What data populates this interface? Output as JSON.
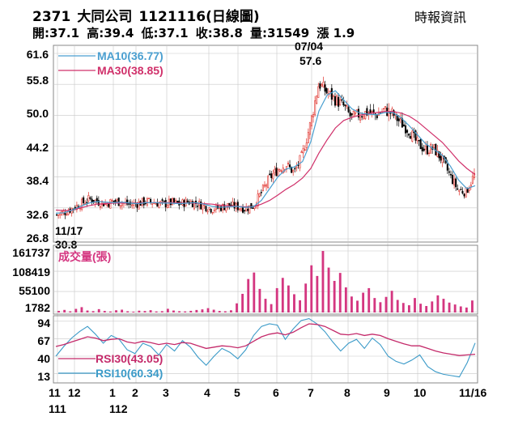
{
  "header": {
    "code": "2371",
    "name": "大同公司",
    "date": "1121116",
    "chart_kind": "(日線圖)",
    "source": "時報資訊",
    "open": "開:37.1",
    "high": "高:39.4",
    "low": "低:37.1",
    "close": "收:38.8",
    "volume": "量:31549",
    "change": "漲 1.9"
  },
  "colors": {
    "up": "#e0302a",
    "down": "#000000",
    "ma10": "#4a9fd0",
    "ma30": "#d0306a",
    "volume": "#d43680",
    "rsi10": "#3a9ac8",
    "rsi30": "#c42a6a",
    "grid": "#c8c8c8"
  },
  "chart_data": [
    {
      "type": "candlestick",
      "ylim": [
        26.8,
        61.6
      ],
      "y_ticks": [
        "61.6",
        "55.8",
        "50.0",
        "44.2",
        "38.4",
        "32.6",
        "26.8"
      ],
      "grid": true,
      "legend": [
        {
          "label": "MA10(36.77)",
          "color": "#4a9fd0"
        },
        {
          "label": "MA30(38.85)",
          "color": "#d0306a"
        }
      ],
      "annotations": [
        {
          "text": "07/04",
          "value": "57.6",
          "type": "high"
        },
        {
          "text": "11/17",
          "value": "30.8",
          "type": "low"
        }
      ],
      "close_path": [
        [
          "11/17",
          31.3
        ],
        [
          "11/24",
          31.8
        ],
        [
          "12/01",
          32.6
        ],
        [
          "12/08",
          33.4
        ],
        [
          "12/15",
          34.3
        ],
        [
          "12/22",
          33.8
        ],
        [
          "12/29",
          33.4
        ],
        [
          "01/05",
          33.9
        ],
        [
          "01/12",
          33.6
        ],
        [
          "01/19",
          33.2
        ],
        [
          "01/30",
          33.5
        ],
        [
          "02/06",
          33.8
        ],
        [
          "02/13",
          33.6
        ],
        [
          "02/20",
          33.3
        ],
        [
          "03/01",
          33.6
        ],
        [
          "03/08",
          33.3
        ],
        [
          "03/15",
          33.8
        ],
        [
          "03/22",
          33.5
        ],
        [
          "03/29",
          33.0
        ],
        [
          "04/06",
          32.4
        ],
        [
          "04/13",
          32.7
        ],
        [
          "04/20",
          33.1
        ],
        [
          "04/27",
          32.8
        ],
        [
          "05/04",
          32.5
        ],
        [
          "05/11",
          33.0
        ],
        [
          "05/18",
          35.5
        ],
        [
          "05/25",
          38.2
        ],
        [
          "06/01",
          39.8
        ],
        [
          "06/08",
          40.8
        ],
        [
          "06/15",
          39.2
        ],
        [
          "06/21",
          42.5
        ],
        [
          "06/27",
          48.5
        ],
        [
          "07/04",
          56.0
        ],
        [
          "07/11",
          54.3
        ],
        [
          "07/18",
          53.0
        ],
        [
          "07/25",
          51.8
        ],
        [
          "08/01",
          49.5
        ],
        [
          "08/08",
          50.2
        ],
        [
          "08/15",
          50.6
        ],
        [
          "08/22",
          50.0
        ],
        [
          "08/29",
          51.0
        ],
        [
          "09/05",
          50.3
        ],
        [
          "09/12",
          48.6
        ],
        [
          "09/19",
          47.2
        ],
        [
          "09/26",
          44.8
        ],
        [
          "10/03",
          43.5
        ],
        [
          "10/13",
          43.8
        ],
        [
          "10/20",
          41.8
        ],
        [
          "10/27",
          38.8
        ],
        [
          "11/03",
          36.0
        ],
        [
          "11/10",
          35.6
        ],
        [
          "11/16",
          38.8
        ]
      ],
      "ma10_path": [
        31.6,
        31.7,
        32.2,
        32.9,
        33.5,
        33.8,
        33.7,
        33.6,
        33.7,
        33.5,
        33.4,
        33.6,
        33.6,
        33.5,
        33.5,
        33.4,
        33.5,
        33.6,
        33.3,
        32.9,
        32.7,
        32.8,
        32.9,
        32.7,
        32.8,
        34.0,
        36.2,
        38.4,
        39.9,
        40.3,
        41.3,
        45.0,
        50.8,
        53.8,
        54.6,
        52.9,
        51.2,
        50.4,
        50.2,
        50.1,
        50.5,
        50.5,
        49.5,
        48.0,
        46.3,
        44.6,
        43.6,
        42.5,
        40.4,
        37.8,
        36.2,
        36.77
      ],
      "ma30_path": [
        32.2,
        32.1,
        32.2,
        32.6,
        33.0,
        33.3,
        33.4,
        33.5,
        33.5,
        33.5,
        33.5,
        33.6,
        33.6,
        33.6,
        33.6,
        33.5,
        33.5,
        33.5,
        33.4,
        33.3,
        33.1,
        33.0,
        32.9,
        32.8,
        32.8,
        33.3,
        34.0,
        35.0,
        36.1,
        37.0,
        38.2,
        40.0,
        42.9,
        45.4,
        47.6,
        49.0,
        49.6,
        50.0,
        50.3,
        50.5,
        50.7,
        50.7,
        50.4,
        49.8,
        48.8,
        47.5,
        46.2,
        44.9,
        43.2,
        41.4,
        40.0,
        38.85
      ]
    },
    {
      "type": "bar",
      "title": "成交量(張)",
      "ylim": [
        0,
        161737
      ],
      "y_ticks": [
        "161737",
        "108419",
        "55100",
        "1782"
      ],
      "grid": true,
      "values": [
        4200,
        6800,
        3100,
        9500,
        14000,
        5200,
        3600,
        8800,
        4100,
        2600,
        5900,
        7400,
        3300,
        2200,
        4800,
        3900,
        6100,
        2800,
        3500,
        9700,
        5200,
        3400,
        2900,
        4400,
        6600,
        8200,
        11400,
        7300,
        4100,
        3300,
        5800,
        24000,
        49000,
        88000,
        105000,
        62000,
        36000,
        22000,
        64000,
        91000,
        71000,
        48000,
        32000,
        76000,
        124000,
        96000,
        161737,
        118000,
        83000,
        104000,
        66000,
        42000,
        31000,
        52000,
        64000,
        38000,
        27000,
        41000,
        57000,
        33000,
        25000,
        19000,
        38000,
        23000,
        17000,
        29000,
        45000,
        36000,
        26000,
        21000,
        16000,
        13000,
        31549
      ]
    },
    {
      "type": "line",
      "ylim": [
        0,
        100
      ],
      "y_ticks": [
        "94",
        "67",
        "40",
        "13"
      ],
      "grid": true,
      "series": [
        {
          "name": "RSI30(43.05)",
          "color": "#c42a6a",
          "values": [
            55,
            58,
            62,
            66,
            70,
            68,
            64,
            66,
            67,
            62,
            60,
            63,
            61,
            58,
            60,
            58,
            61,
            60,
            56,
            52,
            54,
            56,
            55,
            53,
            56,
            63,
            70,
            74,
            76,
            73,
            77,
            84,
            90,
            89,
            86,
            80,
            74,
            73,
            75,
            72,
            74,
            72,
            67,
            63,
            59,
            56,
            56,
            52,
            48,
            45,
            43,
            41,
            42,
            43.05
          ]
        },
        {
          "name": "RSI10(60.34)",
          "color": "#3a9ac8",
          "values": [
            40,
            55,
            68,
            78,
            86,
            74,
            60,
            72,
            66,
            50,
            44,
            60,
            55,
            42,
            58,
            48,
            64,
            54,
            38,
            26,
            40,
            52,
            46,
            36,
            50,
            72,
            86,
            90,
            88,
            66,
            82,
            95,
            98,
            90,
            78,
            62,
            48,
            60,
            66,
            52,
            68,
            58,
            40,
            32,
            28,
            34,
            42,
            24,
            16,
            12,
            10,
            8,
            30,
            60.34
          ]
        }
      ]
    }
  ],
  "x_axis": {
    "labels": [
      "11",
      "12",
      "1",
      "2",
      "3",
      "4",
      "5",
      "6",
      "7",
      "8",
      "9",
      "10",
      "11/16"
    ],
    "year_labels": [
      "111",
      "112"
    ]
  }
}
